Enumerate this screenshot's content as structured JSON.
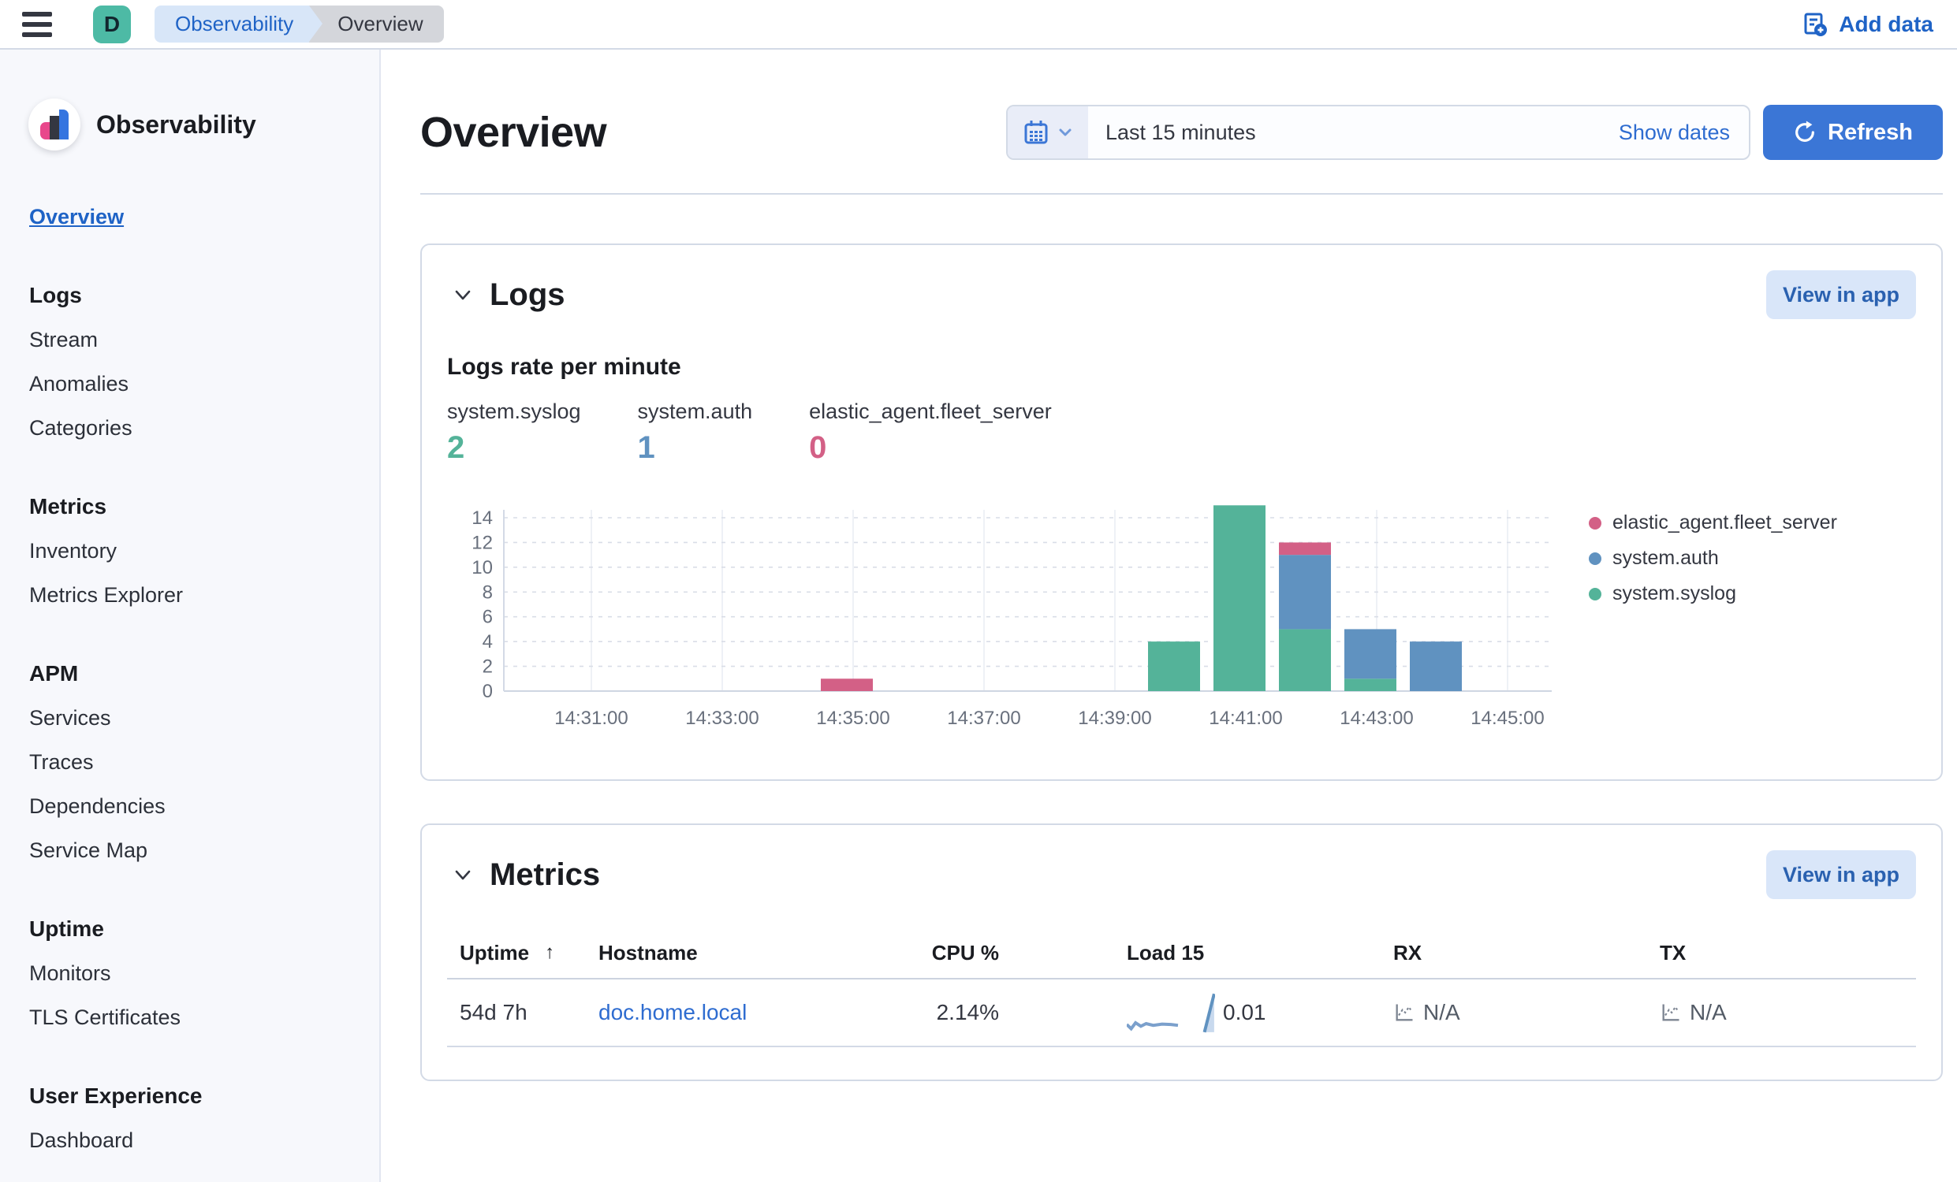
{
  "colors": {
    "accent_blue": "#3b76d6",
    "link_blue": "#1f63c6",
    "panel_border": "#d3dae6",
    "teal_avatar": "#4dbaa5",
    "green": "#54b399",
    "blue": "#6092c0",
    "pink": "#d36086"
  },
  "topbar": {
    "space_letter": "D",
    "breadcrumbs": [
      "Observability",
      "Overview"
    ],
    "add_data_label": "Add data"
  },
  "sidebar": {
    "app_title": "Observability",
    "overview_link": "Overview",
    "sections": [
      {
        "title": "Logs",
        "items": [
          "Stream",
          "Anomalies",
          "Categories"
        ]
      },
      {
        "title": "Metrics",
        "items": [
          "Inventory",
          "Metrics Explorer"
        ]
      },
      {
        "title": "APM",
        "items": [
          "Services",
          "Traces",
          "Dependencies",
          "Service Map"
        ]
      },
      {
        "title": "Uptime",
        "items": [
          "Monitors",
          "TLS Certificates"
        ]
      },
      {
        "title": "User Experience",
        "items": [
          "Dashboard"
        ]
      }
    ]
  },
  "header": {
    "page_title": "Overview",
    "time_range": "Last 15 minutes",
    "show_dates_label": "Show dates",
    "refresh_label": "Refresh"
  },
  "logs_panel": {
    "title": "Logs",
    "view_in_app_label": "View in app",
    "subtitle": "Logs rate per minute",
    "stats": [
      {
        "label": "system.syslog",
        "value": "2",
        "color": "#54b399"
      },
      {
        "label": "system.auth",
        "value": "1",
        "color": "#6092c0"
      },
      {
        "label": "elastic_agent.fleet_server",
        "value": "0",
        "color": "#d36086"
      }
    ]
  },
  "chart_data": {
    "type": "bar",
    "stacked": true,
    "title": "Logs rate per minute",
    "xlabel": "",
    "ylabel": "",
    "ylim": [
      0,
      15
    ],
    "grid": true,
    "legend_position": "right",
    "x_tick_labels": [
      "14:31:00",
      "14:33:00",
      "14:35:00",
      "14:37:00",
      "14:39:00",
      "14:41:00",
      "14:43:00",
      "14:45:00"
    ],
    "y_ticks": [
      0,
      2,
      4,
      6,
      8,
      10,
      12,
      14
    ],
    "categories": [
      "14:35:00",
      "14:40:00",
      "14:41:00",
      "14:42:00",
      "14:43:00",
      "14:44:00"
    ],
    "series": [
      {
        "name": "system.syslog",
        "color": "#54b399",
        "values": [
          0,
          4,
          15,
          5,
          1,
          0
        ]
      },
      {
        "name": "system.auth",
        "color": "#6092c0",
        "values": [
          0,
          0,
          0,
          6,
          4,
          4
        ]
      },
      {
        "name": "elastic_agent.fleet_server",
        "color": "#d36086",
        "values": [
          1,
          0,
          0,
          1,
          0,
          0
        ]
      }
    ],
    "legend_order": [
      "elastic_agent.fleet_server",
      "system.auth",
      "system.syslog"
    ]
  },
  "metrics_panel": {
    "title": "Metrics",
    "view_in_app_label": "View in app",
    "table": {
      "columns": [
        {
          "label": "Uptime",
          "sorted": "asc"
        },
        {
          "label": "Hostname"
        },
        {
          "label": "CPU %",
          "align": "right"
        },
        {
          "label": "Load 15"
        },
        {
          "label": "RX"
        },
        {
          "label": "TX"
        }
      ],
      "rows": [
        {
          "uptime": "54d 7h",
          "hostname": "doc.home.local",
          "cpu": "2.14%",
          "load15": {
            "value": "0.01",
            "spark_line": [
              [
                0,
                0.78
              ],
              [
                0.05,
                0.88
              ],
              [
                0.1,
                0.74
              ],
              [
                0.16,
                0.82
              ],
              [
                0.22,
                0.76
              ],
              [
                0.3,
                0.8
              ],
              [
                0.4,
                0.77
              ],
              [
                0.5,
                0.78
              ],
              [
                0.58,
                0.8
              ]
            ],
            "spark_spike": [
              [
                0.88,
                0.96
              ],
              [
                0.99,
                0.06
              ]
            ]
          },
          "rx": "N/A",
          "tx": "N/A"
        }
      ]
    }
  }
}
